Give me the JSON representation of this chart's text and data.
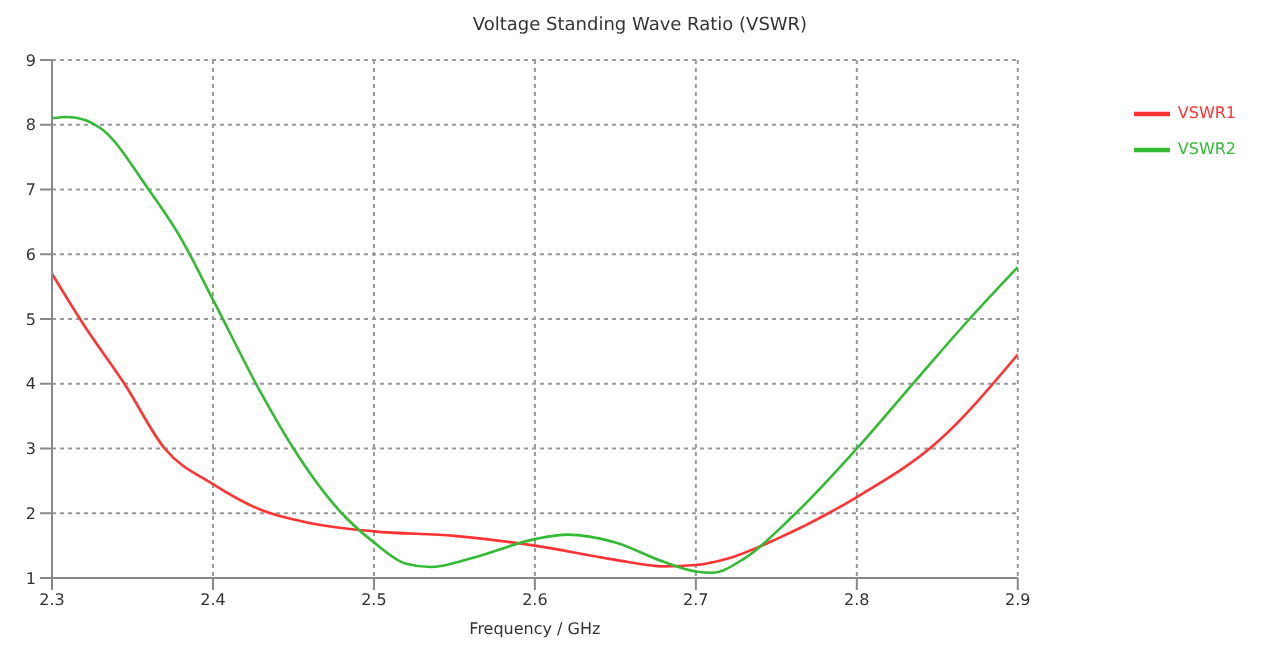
{
  "chart_data": {
    "type": "line",
    "title": "Voltage Standing Wave Ratio (VSWR)",
    "xlabel": "Frequency / GHz",
    "xlim": [
      2.3,
      2.9
    ],
    "xticks": [
      2.3,
      2.4,
      2.5,
      2.6,
      2.7,
      2.8,
      2.9
    ],
    "ylim": [
      1,
      9
    ],
    "yticks": [
      1,
      2,
      3,
      4,
      5,
      6,
      7,
      8,
      9
    ],
    "grid": true,
    "legend": "top right",
    "marker": "none",
    "line_style": "solid",
    "series": [
      {
        "name": "VSWR1",
        "color": "#ff3333",
        "x": [
          2.3,
          2.32,
          2.345,
          2.37,
          2.4,
          2.43,
          2.46,
          2.5,
          2.55,
          2.6,
          2.65,
          2.68,
          2.7,
          2.72,
          2.75,
          2.8,
          2.85,
          2.9
        ],
        "values": [
          5.7,
          4.9,
          4.0,
          3.0,
          2.45,
          2.05,
          1.85,
          1.72,
          1.65,
          1.5,
          1.28,
          1.18,
          1.2,
          1.3,
          1.6,
          2.25,
          3.1,
          4.45
        ]
      },
      {
        "name": "VSWR2",
        "color": "#33bb33",
        "x": [
          2.3,
          2.31,
          2.33,
          2.36,
          2.38,
          2.4,
          2.43,
          2.45,
          2.48,
          2.5,
          2.52,
          2.535,
          2.56,
          2.6,
          2.62,
          2.65,
          2.68,
          2.7,
          2.71,
          2.73,
          2.76,
          2.8,
          2.84,
          2.87,
          2.9
        ],
        "values": [
          8.1,
          8.12,
          7.95,
          7.0,
          6.25,
          5.3,
          3.85,
          3.0,
          2.0,
          1.55,
          1.22,
          1.17,
          1.3,
          1.6,
          1.67,
          1.55,
          1.25,
          1.1,
          1.08,
          1.3,
          1.95,
          3.0,
          4.15,
          5.0,
          5.8
        ]
      }
    ]
  }
}
